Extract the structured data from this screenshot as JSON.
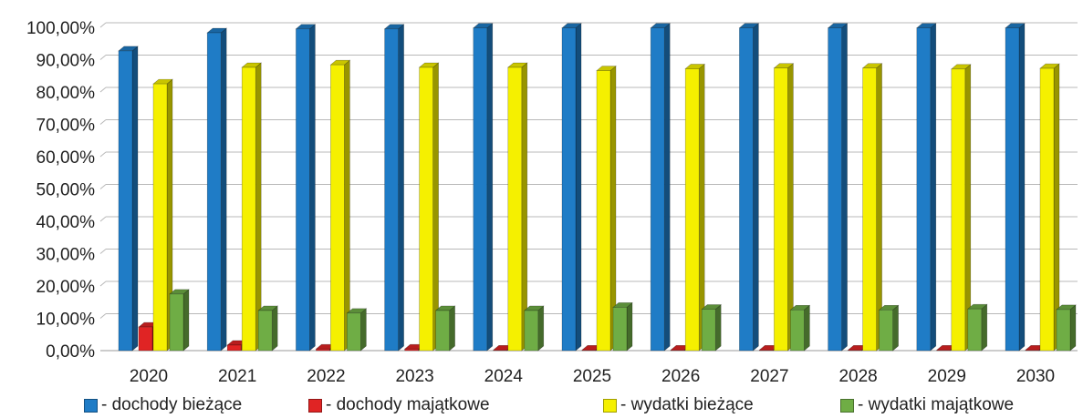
{
  "chart_data": {
    "type": "bar",
    "title": "",
    "xlabel": "",
    "ylabel": "",
    "ylim": [
      0,
      100
    ],
    "y_tick_format": "percent_comma_2dp",
    "grid": true,
    "legend_position": "bottom",
    "style": "3d-clustered-columns",
    "y_ticks": [
      "0,00%",
      "10,00%",
      "20,00%",
      "30,00%",
      "40,00%",
      "50,00%",
      "60,00%",
      "70,00%",
      "80,00%",
      "90,00%",
      "100,00%"
    ],
    "categories": [
      "2020",
      "2021",
      "2022",
      "2023",
      "2024",
      "2025",
      "2026",
      "2027",
      "2028",
      "2029",
      "2030"
    ],
    "series": [
      {
        "name": "- dochody bieżące",
        "color": "#1f7cc6",
        "values": [
          92.7,
          98.3,
          99.5,
          99.5,
          99.8,
          99.8,
          99.8,
          99.8,
          99.8,
          99.8,
          99.8
        ]
      },
      {
        "name": "- dochody majątkowe",
        "color": "#e02424",
        "values": [
          7.3,
          1.7,
          0.5,
          0.5,
          0.2,
          0.2,
          0.2,
          0.2,
          0.2,
          0.2,
          0.2
        ]
      },
      {
        "name": "- wydatki bieżące",
        "color": "#f5f000",
        "values": [
          82.5,
          87.6,
          88.4,
          87.6,
          87.6,
          86.6,
          87.2,
          87.4,
          87.4,
          87.1,
          87.3
        ]
      },
      {
        "name": "- wydatki majątkowe",
        "color": "#6fad45",
        "values": [
          17.5,
          12.4,
          11.6,
          12.4,
          12.4,
          13.4,
          12.8,
          12.6,
          12.6,
          12.9,
          12.7
        ]
      }
    ]
  }
}
